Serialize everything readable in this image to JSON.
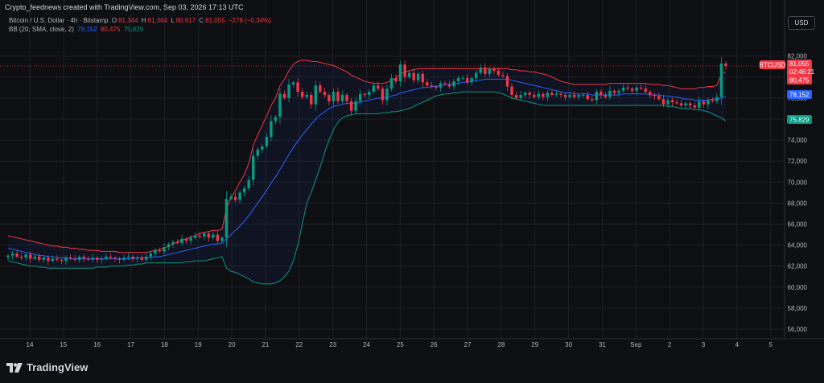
{
  "header": {
    "attribution": "Crypto_feednews created with TradingView.com, Sep 03, 2026 17:13 UTC",
    "currency_button": "USD"
  },
  "legend": {
    "symbol": "Bitcoin / U.S. Dollar · 4h · Bitstamp",
    "o_label": "O",
    "o_value": "81,344",
    "h_label": "H",
    "h_value": "81,364",
    "l_label": "L",
    "l_value": "80,617",
    "c_label": "C",
    "c_value": "81,055",
    "change": "−278 (−0.34%)",
    "indicator": "BB (20, SMA, close, 2)",
    "bb_basis": "78,152",
    "bb_upper": "80,475",
    "bb_lower": "75,829"
  },
  "price_tags": {
    "symbol": "BTCUSD",
    "last_price": "81,055",
    "countdown": "02:46:21",
    "upper": "80,475",
    "basis": "78,152",
    "lower": "75,829"
  },
  "colors": {
    "bg": "#0e0f12",
    "up": "#089981",
    "down": "#f23645",
    "bb_upper": "#f23645",
    "bb_basis": "#2962ff",
    "bb_lower": "#089981",
    "grid": "#1c1f26"
  },
  "footer": {
    "brand": "TradingView"
  },
  "chart_data": {
    "type": "candlestick",
    "title": "Bitcoin / U.S. Dollar · 4h · Bitstamp",
    "interval": "4h",
    "ylim": [
      55000,
      83000
    ],
    "y_ticks": [
      "56,000",
      "58,000",
      "60,000",
      "62,000",
      "64,000",
      "66,000",
      "68,000",
      "70,000",
      "72,000",
      "74,000",
      "76,000",
      "78,000",
      "80,000",
      "82,000"
    ],
    "x_ticks": [
      "14",
      "15",
      "16",
      "17",
      "18",
      "19",
      "20",
      "21",
      "22",
      "23",
      "24",
      "25",
      "26",
      "27",
      "28",
      "29",
      "30",
      "31",
      "Sep",
      "2",
      "3",
      "4",
      "5"
    ],
    "grid": true,
    "close_series": [
      63000,
      63200,
      62900,
      62800,
      63100,
      62700,
      62900,
      62600,
      62800,
      62500,
      62700,
      62600,
      62500,
      62800,
      62700,
      62600,
      62900,
      62700,
      62600,
      62800,
      62600,
      62700,
      62900,
      62800,
      62700,
      62600,
      62800,
      62900,
      62700,
      62800,
      62600,
      62900,
      63200,
      63500,
      63400,
      63800,
      64100,
      64300,
      64200,
      64600,
      64400,
      64700,
      64900,
      64800,
      65100,
      64700,
      65000,
      64400,
      64700,
      68400,
      68600,
      68300,
      69000,
      69400,
      70200,
      72500,
      73100,
      73400,
      74300,
      75800,
      76200,
      78400,
      78000,
      79300,
      79500,
      78600,
      78100,
      78300,
      77400,
      79200,
      78600,
      78300,
      77700,
      78600,
      77700,
      78300,
      77700,
      76800,
      77700,
      78400,
      78300,
      78600,
      79200,
      78900,
      77800,
      78900,
      79900,
      79600,
      81200,
      80000,
      80400,
      79700,
      80300,
      79500,
      79200,
      79100,
      79000,
      79400,
      79300,
      79100,
      79600,
      79900,
      79900,
      79500,
      79900,
      80400,
      80900,
      80300,
      80800,
      80600,
      80200,
      80100,
      79100,
      78300,
      78000,
      78300,
      78500,
      78300,
      78100,
      78400,
      78100,
      78500,
      78300,
      78400,
      78300,
      78100,
      78300,
      78100,
      78300,
      78300,
      77900,
      77800,
      78600,
      78300,
      78100,
      78700,
      78500,
      78700,
      79000,
      78900,
      78700,
      79000,
      78900,
      78600,
      78300,
      78200,
      77900,
      77400,
      77800,
      77600,
      77500,
      77300,
      77500,
      77300,
      77100,
      77700,
      77400,
      77800,
      77700,
      78100,
      81300,
      81055
    ],
    "bb_upper": [
      64900,
      64800,
      64700,
      64600,
      64500,
      64400,
      64300,
      64200,
      64100,
      64000,
      63900,
      63900,
      63800,
      63800,
      63700,
      63700,
      63600,
      63600,
      63500,
      63500,
      63500,
      63400,
      63400,
      63400,
      63400,
      63300,
      63300,
      63300,
      63300,
      63300,
      63300,
      63300,
      63400,
      63500,
      63600,
      63700,
      63900,
      64100,
      64300,
      64500,
      64600,
      64800,
      64900,
      65100,
      65200,
      65300,
      65400,
      65400,
      65500,
      67500,
      68500,
      69200,
      70000,
      70700,
      71800,
      73500,
      74500,
      75400,
      76300,
      77300,
      78000,
      79200,
      79800,
      80600,
      81200,
      81500,
      81600,
      81600,
      81500,
      81500,
      81400,
      81300,
      81200,
      81100,
      80900,
      80700,
      80500,
      80200,
      80000,
      79800,
      79600,
      79500,
      79400,
      79400,
      79400,
      79500,
      79700,
      79900,
      80300,
      80500,
      80600,
      80700,
      80800,
      80800,
      80800,
      80800,
      80800,
      80800,
      80800,
      80800,
      80800,
      80800,
      80800,
      80800,
      80800,
      80800,
      80800,
      80800,
      80800,
      80800,
      80800,
      80800,
      80800,
      80700,
      80700,
      80600,
      80600,
      80500,
      80500,
      80400,
      80300,
      80200,
      80000,
      79800,
      79600,
      79500,
      79400,
      79300,
      79300,
      79300,
      79300,
      79300,
      79300,
      79300,
      79300,
      79400,
      79400,
      79400,
      79400,
      79400,
      79400,
      79400,
      79400,
      79400,
      79300,
      79300,
      79300,
      79200,
      79200,
      79100,
      79000,
      78900,
      78900,
      78900,
      78900,
      79000,
      79000,
      79100,
      79100,
      79200,
      80300,
      80475
    ],
    "bb_basis": [
      63700,
      63600,
      63500,
      63400,
      63300,
      63200,
      63100,
      63000,
      63000,
      62900,
      62900,
      62800,
      62800,
      62800,
      62700,
      62700,
      62700,
      62700,
      62700,
      62700,
      62700,
      62700,
      62700,
      62700,
      62700,
      62700,
      62700,
      62700,
      62700,
      62800,
      62800,
      62800,
      62800,
      62900,
      62900,
      63000,
      63100,
      63200,
      63300,
      63400,
      63500,
      63600,
      63700,
      63800,
      63900,
      64000,
      64100,
      64100,
      64200,
      64600,
      65000,
      65400,
      65800,
      66300,
      66800,
      67400,
      68000,
      68600,
      69200,
      69900,
      70500,
      71200,
      71900,
      72600,
      73300,
      73900,
      74500,
      75000,
      75500,
      76000,
      76400,
      76700,
      77000,
      77200,
      77300,
      77400,
      77500,
      77500,
      77500,
      77600,
      77700,
      77800,
      77900,
      78000,
      78000,
      78100,
      78200,
      78300,
      78500,
      78600,
      78700,
      78800,
      78900,
      79000,
      79000,
      79100,
      79100,
      79200,
      79300,
      79300,
      79400,
      79400,
      79500,
      79500,
      79600,
      79700,
      79700,
      79800,
      79800,
      79800,
      79800,
      79800,
      79800,
      79700,
      79600,
      79500,
      79400,
      79300,
      79200,
      79100,
      79000,
      78900,
      78800,
      78700,
      78600,
      78500,
      78500,
      78400,
      78400,
      78400,
      78400,
      78300,
      78300,
      78300,
      78300,
      78300,
      78300,
      78300,
      78400,
      78400,
      78400,
      78400,
      78400,
      78400,
      78300,
      78300,
      78300,
      78200,
      78200,
      78100,
      78100,
      78000,
      77900,
      77900,
      77800,
      77800,
      77800,
      77800,
      77900,
      77900,
      78000,
      78152
    ],
    "bb_lower": [
      62500,
      62400,
      62300,
      62200,
      62100,
      62000,
      62000,
      61900,
      61900,
      61800,
      61800,
      61800,
      61800,
      61800,
      61800,
      61800,
      61800,
      61800,
      61800,
      61800,
      61900,
      61900,
      61900,
      62000,
      62000,
      62000,
      62000,
      62100,
      62100,
      62200,
      62200,
      62300,
      62300,
      62300,
      62300,
      62300,
      62300,
      62300,
      62300,
      62300,
      62400,
      62400,
      62500,
      62500,
      62500,
      62600,
      62700,
      62800,
      62900,
      61800,
      61500,
      61400,
      61200,
      61000,
      60800,
      60500,
      60400,
      60300,
      60300,
      60300,
      60400,
      60600,
      61000,
      61500,
      62500,
      64000,
      66000,
      68000,
      69000,
      70200,
      71400,
      72800,
      74000,
      75000,
      75700,
      76100,
      76300,
      76400,
      76500,
      76500,
      76500,
      76500,
      76500,
      76500,
      76600,
      76600,
      76700,
      76700,
      76800,
      76900,
      77000,
      77200,
      77400,
      77600,
      77800,
      78000,
      78200,
      78300,
      78400,
      78400,
      78500,
      78500,
      78600,
      78600,
      78600,
      78600,
      78600,
      78600,
      78600,
      78600,
      78500,
      78400,
      78200,
      78000,
      77900,
      77800,
      77700,
      77600,
      77500,
      77400,
      77300,
      77300,
      77300,
      77300,
      77300,
      77300,
      77300,
      77300,
      77300,
      77300,
      77300,
      77300,
      77300,
      77300,
      77300,
      77300,
      77300,
      77300,
      77300,
      77300,
      77300,
      77300,
      77300,
      77300,
      77300,
      77300,
      77300,
      77300,
      77200,
      77200,
      77100,
      77000,
      77000,
      77000,
      76900,
      76900,
      76800,
      76700,
      76500,
      76300,
      76100,
      75829
    ]
  }
}
